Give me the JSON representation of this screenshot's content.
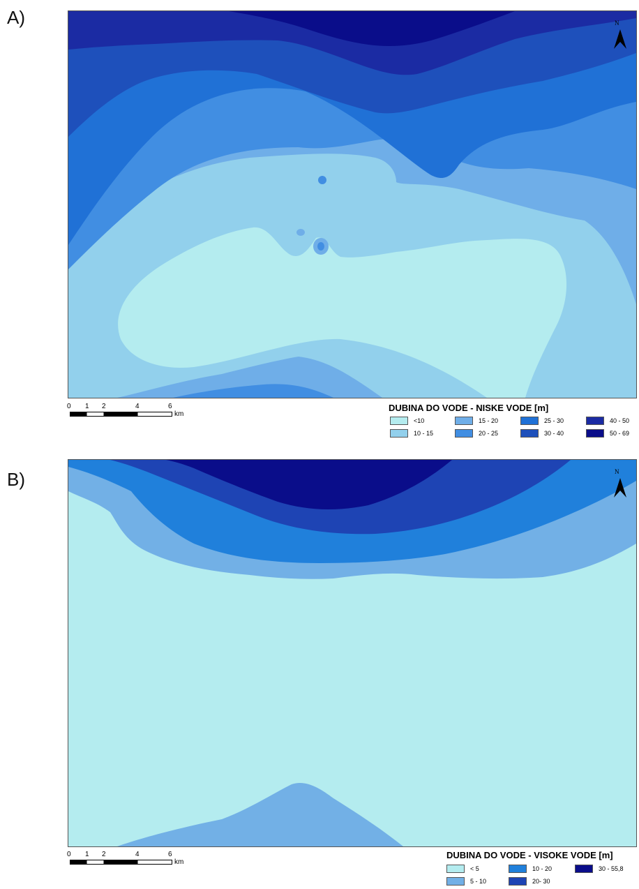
{
  "panels": [
    {
      "label": "A)",
      "legend_title": "DUBINA DO VODE - NISKE VODE  [m]",
      "classes": [
        {
          "label": "<10",
          "color": "#b4ecef"
        },
        {
          "label": "10 - 15",
          "color": "#92d0ec"
        },
        {
          "label": "15 - 20",
          "color": "#6faee8"
        },
        {
          "label": "20 - 25",
          "color": "#418ee2"
        },
        {
          "label": "25 - 30",
          "color": "#2071d6"
        },
        {
          "label": "30 - 40",
          "color": "#1e50bb"
        },
        {
          "label": "40 - 50",
          "color": "#1b2ba3"
        },
        {
          "label": "50 - 69",
          "color": "#0a0d8a"
        }
      ],
      "scale_ticks": [
        "0",
        "1",
        "2",
        "4",
        "6"
      ],
      "scale_unit": "km",
      "north_label": "N"
    },
    {
      "label": "B)",
      "legend_title": "DUBINA DO VODE - VISOKE VODE  [m]",
      "classes": [
        {
          "label": "< 5",
          "color": "#b4ecef"
        },
        {
          "label": "5 - 10",
          "color": "#72b0e6"
        },
        {
          "label": "10 - 20",
          "color": "#2080db"
        },
        {
          "label": "20- 30",
          "color": "#1e44b4"
        },
        {
          "label": "30 - 55,8",
          "color": "#0a0d8a"
        }
      ],
      "scale_ticks": [
        "0",
        "1",
        "2",
        "4",
        "6"
      ],
      "scale_unit": "km",
      "north_label": "N"
    }
  ]
}
